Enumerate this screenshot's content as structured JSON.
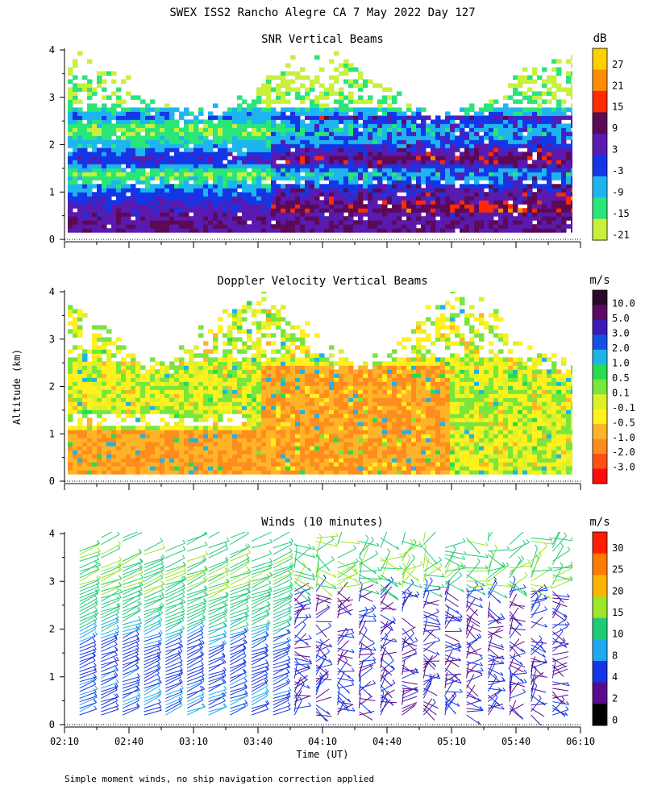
{
  "figure": {
    "title": "SWEX ISS2 Rancho Alegre CA   7 May 2022 Day 127",
    "ylabel": "Altitude (km)",
    "xlabel": "Time (UT)",
    "footnote": "Simple moment winds, no ship navigation correction applied",
    "time_ticks": [
      "02:10",
      "02:40",
      "03:10",
      "03:40",
      "04:10",
      "04:40",
      "05:10",
      "05:40",
      "06:10"
    ],
    "altitude_ticks": [
      "0",
      "1",
      "2",
      "3",
      "4"
    ]
  },
  "panels": [
    {
      "title": "SNR Vertical Beams",
      "unit": "dB",
      "colorbar_labels": [
        "27",
        "21",
        "15",
        "9",
        "3",
        "-3",
        "-9",
        "-15",
        "-21"
      ],
      "colorbar_colors": [
        "#ffd000",
        "#ff8c00",
        "#ff2a00",
        "#5c0a55",
        "#5a1ab0",
        "#1436e6",
        "#1eb4f0",
        "#28e678",
        "#c8f03c"
      ]
    },
    {
      "title": "Doppler Velocity Vertical Beams",
      "unit": "m/s",
      "colorbar_labels": [
        "10.0",
        "5.0",
        "3.0",
        "2.0",
        "1.0",
        "0.5",
        "0.1",
        "-0.1",
        "-0.5",
        "-1.0",
        "-2.0",
        "-3.0"
      ],
      "colorbar_colors": [
        "#2a0a28",
        "#5a0a60",
        "#3c1ab4",
        "#1450e6",
        "#1eb4e6",
        "#28dc50",
        "#78e63c",
        "#dcf028",
        "#fff01e",
        "#ffb428",
        "#ff8c1e",
        "#ff5014",
        "#ff0a0a"
      ]
    },
    {
      "title": "Winds (10 minutes)",
      "unit": "m/s",
      "colorbar_labels": [
        "30",
        "25",
        "20",
        "15",
        "10",
        "8",
        "4",
        "2",
        "0"
      ],
      "colorbar_colors": [
        "#ff1e00",
        "#ff7a00",
        "#ffb400",
        "#9ee628",
        "#1ecc78",
        "#1eaaf0",
        "#1436e6",
        "#5a0a8c",
        "#000000"
      ]
    }
  ],
  "chart_data": [
    {
      "type": "heatmap",
      "title": "SNR Vertical Beams",
      "xlabel": "Time (UT)",
      "ylabel": "Altitude (km)",
      "x_range": [
        "02:10",
        "06:10"
      ],
      "ylim": [
        0,
        4
      ],
      "colorbar_unit": "dB",
      "colorbar_ticks": [
        27,
        21,
        15,
        9,
        3,
        -3,
        -9,
        -15,
        -21
      ],
      "profile_rows": [
        {
          "altitude_km": 0.3,
          "snr_db": 5
        },
        {
          "altitude_km": 0.6,
          "snr_db": 3
        },
        {
          "altitude_km": 1.0,
          "snr_db": -6
        },
        {
          "altitude_km": 1.35,
          "snr_db": -18
        },
        {
          "altitude_km": 1.65,
          "snr_db": 1
        },
        {
          "altitude_km": 2.0,
          "snr_db": -12
        },
        {
          "altitude_km": 2.3,
          "snr_db": -18
        },
        {
          "altitude_km": 2.55,
          "snr_db": -6
        },
        {
          "altitude_km": 2.85,
          "snr_db": -18
        },
        {
          "altitude_km": 3.3,
          "snr_db": -20
        }
      ]
    },
    {
      "type": "heatmap",
      "title": "Doppler Velocity Vertical Beams",
      "xlabel": "Time (UT)",
      "ylabel": "Altitude (km)",
      "x_range": [
        "02:10",
        "06:10"
      ],
      "ylim": [
        0,
        4
      ],
      "colorbar_unit": "m/s",
      "colorbar_ticks": [
        10.0,
        5.0,
        3.0,
        2.0,
        1.0,
        0.5,
        0.1,
        -0.1,
        -0.5,
        -1.0,
        -2.0,
        -3.0
      ]
    },
    {
      "type": "scatter",
      "title": "Winds (10 minutes)",
      "xlabel": "Time (UT)",
      "ylabel": "Altitude (km)",
      "x_range": [
        "02:10",
        "06:10"
      ],
      "ylim": [
        0,
        4
      ],
      "colorbar_unit": "m/s",
      "colorbar_ticks": [
        30,
        25,
        20,
        15,
        10,
        8,
        4,
        2,
        0
      ],
      "profile_times": [
        "02:20",
        "02:30",
        "02:40",
        "02:50",
        "03:00",
        "03:10",
        "03:20",
        "03:30",
        "03:40",
        "03:50",
        "04:00",
        "04:10",
        "04:20",
        "04:30",
        "04:40",
        "04:50",
        "05:00",
        "05:10",
        "05:20",
        "05:30",
        "05:40",
        "05:50",
        "06:00"
      ],
      "typical_speed_ms": [
        {
          "altitude_km": 0.5,
          "speed": 8
        },
        {
          "altitude_km": 1.0,
          "speed": 7
        },
        {
          "altitude_km": 1.5,
          "speed": 6
        },
        {
          "altitude_km": 2.0,
          "speed": 10
        },
        {
          "altitude_km": 2.5,
          "speed": 13
        },
        {
          "altitude_km": 3.0,
          "speed": 15
        },
        {
          "altitude_km": 3.5,
          "speed": 14
        }
      ]
    }
  ]
}
